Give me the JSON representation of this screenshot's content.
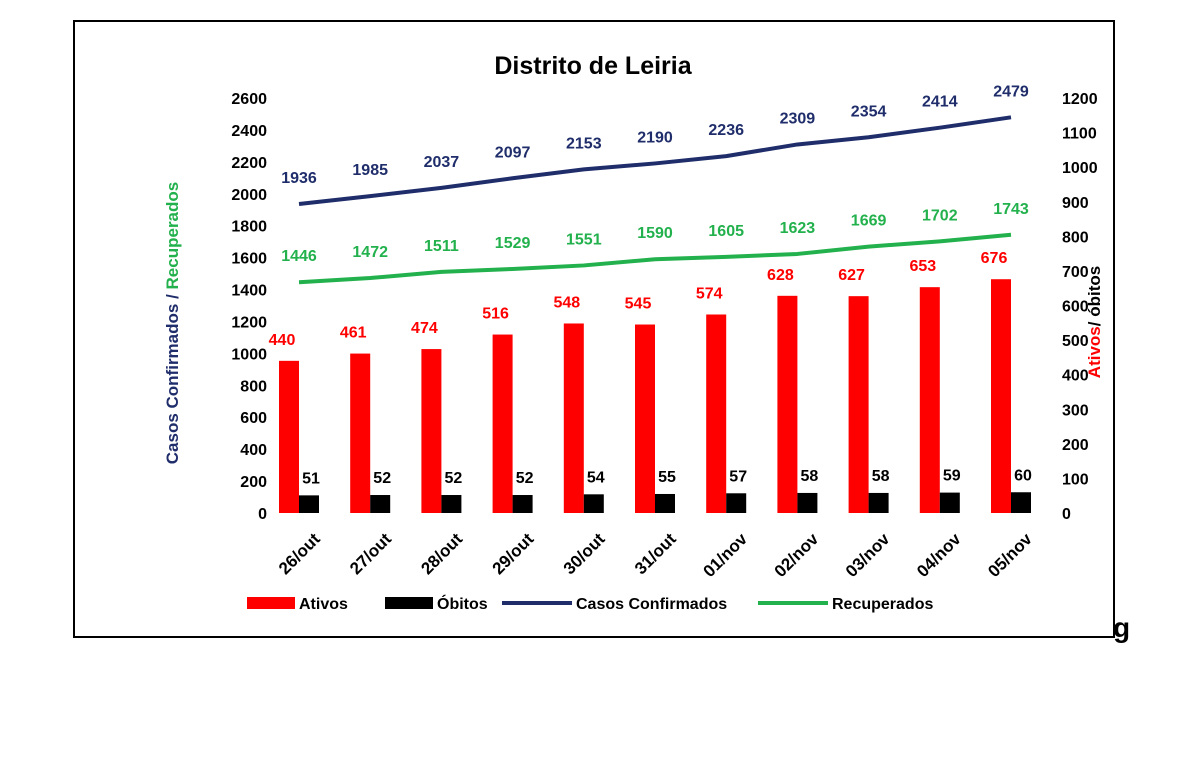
{
  "chart_data": {
    "type": "bar",
    "title": "Distrito de Leiria",
    "categories": [
      "26/out",
      "27/out",
      "28/out",
      "29/out",
      "30/out",
      "31/out",
      "01/nov",
      "02/nov",
      "03/nov",
      "04/nov",
      "05/nov"
    ],
    "series": [
      {
        "name": "Ativos",
        "kind": "bar",
        "axis": "right",
        "color": "#ff0000",
        "values": [
          440,
          461,
          474,
          516,
          548,
          545,
          574,
          628,
          627,
          653,
          676
        ]
      },
      {
        "name": "Óbitos",
        "kind": "bar",
        "axis": "right",
        "color": "#000000",
        "values": [
          51,
          52,
          52,
          52,
          54,
          55,
          57,
          58,
          58,
          59,
          60
        ]
      },
      {
        "name": "Casos Confirmados",
        "kind": "line",
        "axis": "left",
        "color": "#1f2d6b",
        "values": [
          1936,
          1985,
          2037,
          2097,
          2153,
          2190,
          2236,
          2309,
          2354,
          2414,
          2479
        ]
      },
      {
        "name": "Recuperados",
        "kind": "line",
        "axis": "left",
        "color": "#22b14c",
        "values": [
          1446,
          1472,
          1511,
          1529,
          1551,
          1590,
          1605,
          1623,
          1669,
          1702,
          1743
        ]
      }
    ],
    "ylabel_left": {
      "part1": "Casos Confirmados",
      "sep": " / ",
      "part2": "Recuperados"
    },
    "ylabel_right": {
      "part1": "Ativos",
      "sep": "/ ",
      "part2": "óbitos"
    },
    "ylim_left": [
      0,
      2600
    ],
    "ylim_right": [
      0,
      1200
    ],
    "yticks_left": [
      0,
      200,
      400,
      600,
      800,
      1000,
      1200,
      1400,
      1600,
      1800,
      2000,
      2200,
      2400,
      2600
    ],
    "yticks_right": [
      0,
      100,
      200,
      300,
      400,
      500,
      600,
      700,
      800,
      900,
      1000,
      1100,
      1200
    ],
    "grid": false,
    "legend": "bottom"
  },
  "stray_text": "g"
}
